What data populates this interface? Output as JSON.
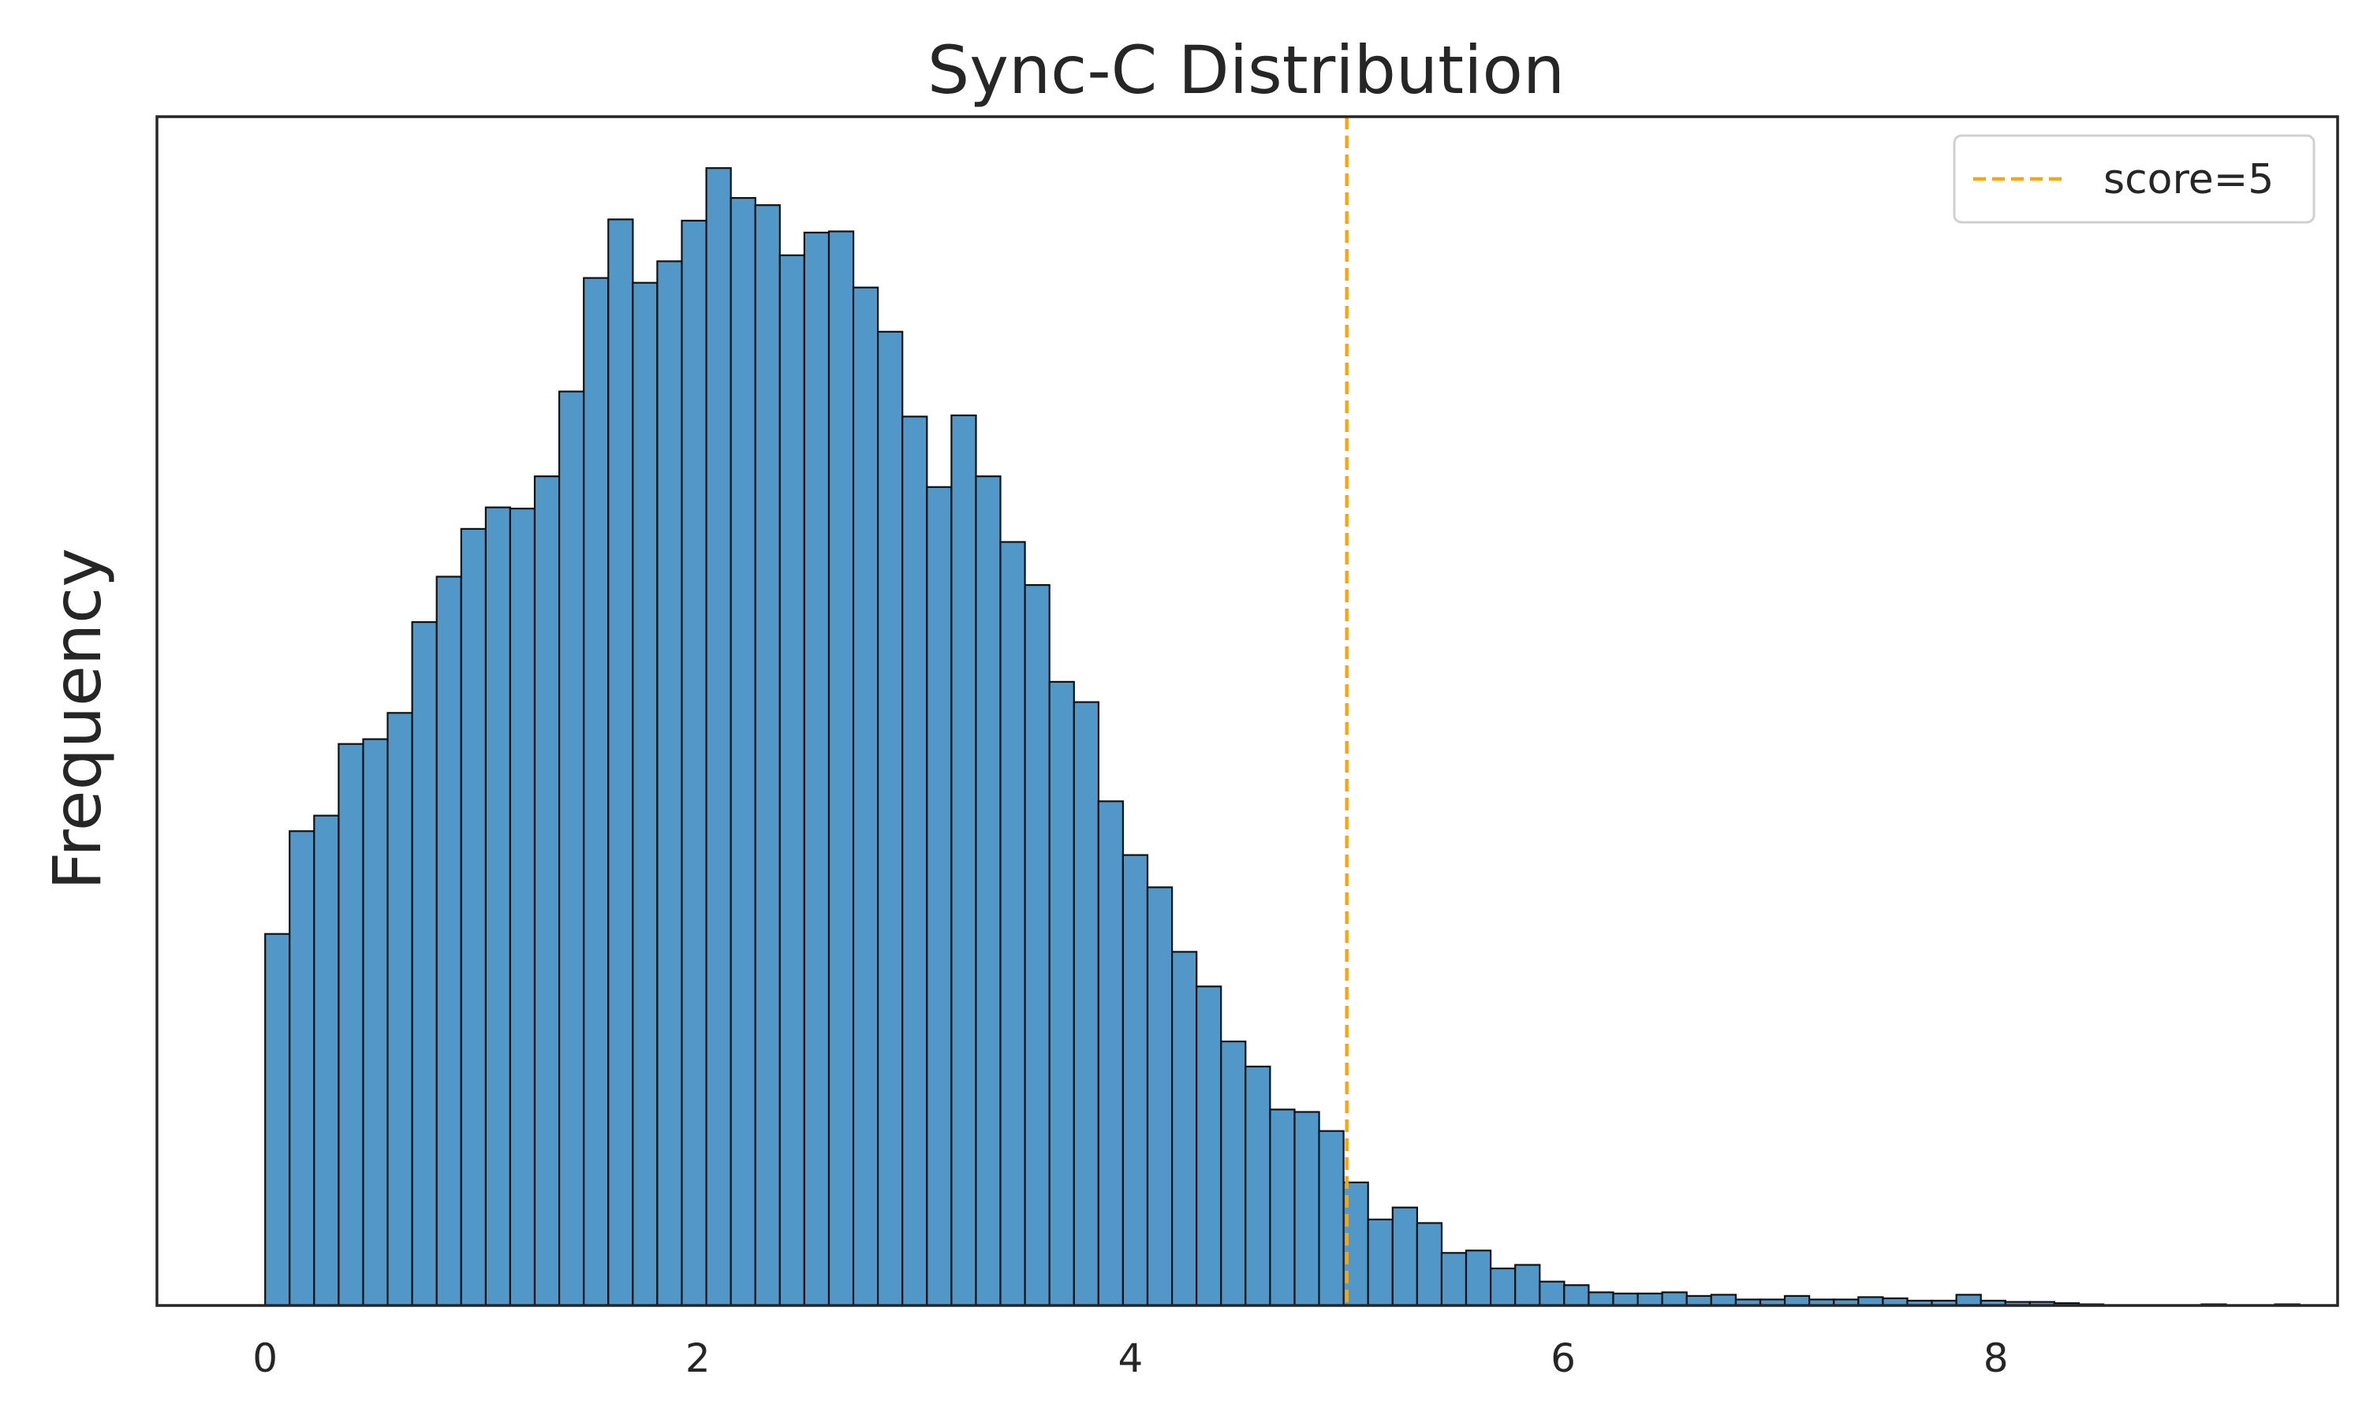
{
  "chart_data": {
    "type": "bar",
    "subtype": "histogram",
    "title": "Sync-C Distribution",
    "xlabel": "",
    "ylabel": "Frequency",
    "xlim": [
      -0.5,
      9.58
    ],
    "x_ticks": [
      0,
      2,
      4,
      6,
      8
    ],
    "y_ticks_shown": false,
    "grid": false,
    "legend_placement": "top-right",
    "bin_start": 0.0,
    "bin_width": 0.1133,
    "ylim": [
      0,
      99.5
    ],
    "values": [
      31.1,
      39.7,
      41.0,
      47.0,
      47.4,
      49.6,
      57.2,
      61.0,
      65.0,
      66.8,
      66.7,
      69.4,
      76.5,
      86.0,
      90.9,
      85.6,
      87.4,
      90.8,
      95.2,
      92.7,
      92.1,
      87.9,
      89.8,
      89.9,
      85.2,
      81.5,
      74.4,
      68.5,
      74.5,
      69.4,
      63.9,
      60.3,
      52.2,
      50.5,
      42.2,
      37.7,
      35.0,
      29.6,
      26.7,
      22.1,
      20.0,
      16.4,
      16.2,
      14.6,
      10.3,
      7.2,
      8.2,
      6.9,
      4.4,
      4.6,
      3.1,
      3.4,
      2.0,
      1.7,
      1.1,
      1.0,
      1.0,
      1.1,
      0.8,
      0.9,
      0.5,
      0.5,
      0.8,
      0.5,
      0.5,
      0.7,
      0.6,
      0.4,
      0.4,
      0.9,
      0.4,
      0.3,
      0.3,
      0.2,
      0.1,
      0.0,
      0.0,
      0.0,
      0.0,
      0.1,
      0.0,
      0.0,
      0.1,
      0.0,
      0.0,
      0.0,
      0.0,
      0.0,
      0.0,
      0.0,
      0.0,
      0.0,
      0.0,
      0.0,
      0.0,
      0.0
    ],
    "reference_line": {
      "x": 5,
      "label": "score=5",
      "color": "#ffa500",
      "style": "dashed"
    },
    "bar_color": "#5197c8",
    "edge_color": "#111111"
  }
}
